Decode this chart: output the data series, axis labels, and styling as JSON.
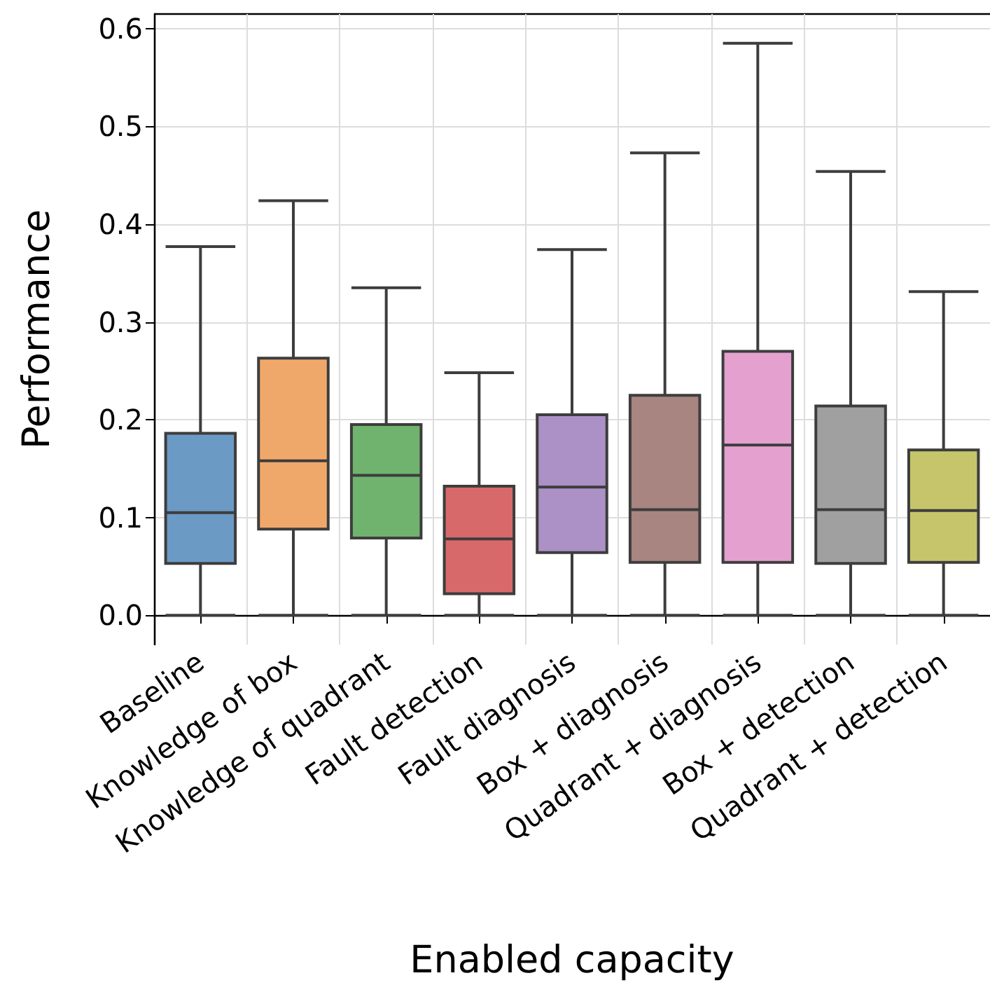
{
  "chart_data": {
    "type": "box",
    "xlabel": "Enabled capacity",
    "ylabel": "Performance",
    "categories": [
      "Baseline",
      "Knowledge of box",
      "Knowledge of quadrant",
      "Fault detection",
      "Fault diagnosis",
      "Box + diagnosis",
      "Quadrant + diagnosis",
      "Box + detection",
      "Quadrant + detection"
    ],
    "colors": [
      "#6b9ac4",
      "#f0a86a",
      "#6fb36f",
      "#d8696b",
      "#ab91c6",
      "#a88580",
      "#e4a1d0",
      "#a0a0a0",
      "#c6c56b"
    ],
    "boxes": [
      {
        "low": 0,
        "q1": 0.053,
        "median": 0.105,
        "q3": 0.186,
        "high": 0.377
      },
      {
        "low": 0,
        "q1": 0.088,
        "median": 0.158,
        "q3": 0.263,
        "high": 0.424
      },
      {
        "low": 0,
        "q1": 0.079,
        "median": 0.143,
        "q3": 0.195,
        "high": 0.335
      },
      {
        "low": 0,
        "q1": 0.022,
        "median": 0.078,
        "q3": 0.132,
        "high": 0.248
      },
      {
        "low": 0,
        "q1": 0.064,
        "median": 0.131,
        "q3": 0.205,
        "high": 0.374
      },
      {
        "low": 0,
        "q1": 0.054,
        "median": 0.108,
        "q3": 0.225,
        "high": 0.473
      },
      {
        "low": 0,
        "q1": 0.054,
        "median": 0.174,
        "q3": 0.27,
        "high": 0.585
      },
      {
        "low": 0,
        "q1": 0.053,
        "median": 0.108,
        "q3": 0.214,
        "high": 0.454
      },
      {
        "low": 0,
        "q1": 0.054,
        "median": 0.107,
        "q3": 0.169,
        "high": 0.331
      }
    ],
    "ylim": [
      -0.03,
      0.615
    ],
    "yticks": [
      {
        "value": 0,
        "label": "0.0"
      },
      {
        "value": 0.1,
        "label": "0.1"
      },
      {
        "value": 0.2,
        "label": "0.2"
      },
      {
        "value": 0.3,
        "label": "0.3"
      },
      {
        "value": 0.4,
        "label": "0.4"
      },
      {
        "value": 0.5,
        "label": "0.5"
      },
      {
        "value": 0.6,
        "label": "0.6"
      }
    ],
    "grid": true
  }
}
